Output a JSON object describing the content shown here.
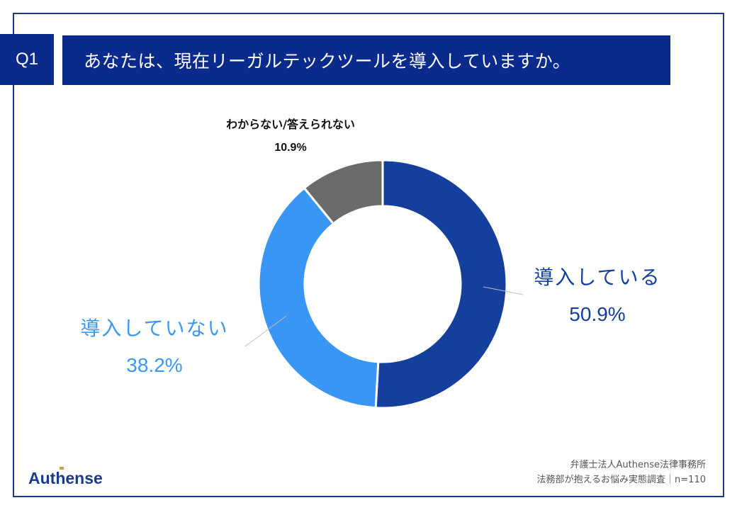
{
  "header": {
    "badge": "Q1",
    "question": "あなたは、現在リーガルテックツールを導入していますか。"
  },
  "chart_data": {
    "type": "pie",
    "donut": true,
    "title": "",
    "slices": [
      {
        "label": "導入している",
        "value": 50.9,
        "value_label": "50.9%",
        "color": "#143f9c"
      },
      {
        "label": "導入していない",
        "value": 38.2,
        "value_label": "38.2%",
        "color": "#3a96f5"
      },
      {
        "label": "わからない/答えられない",
        "value": 10.9,
        "value_label": "10.9%",
        "color": "#6b6b6b"
      }
    ]
  },
  "footer": {
    "logo": "Authense",
    "credit_line1": "弁護士法人Authense法律事務所",
    "credit_line2": "法務部が抱えるお悩み実態調査｜n=110"
  },
  "colors": {
    "navy": "#0b2b8c",
    "frame": "#1a3b8c"
  }
}
